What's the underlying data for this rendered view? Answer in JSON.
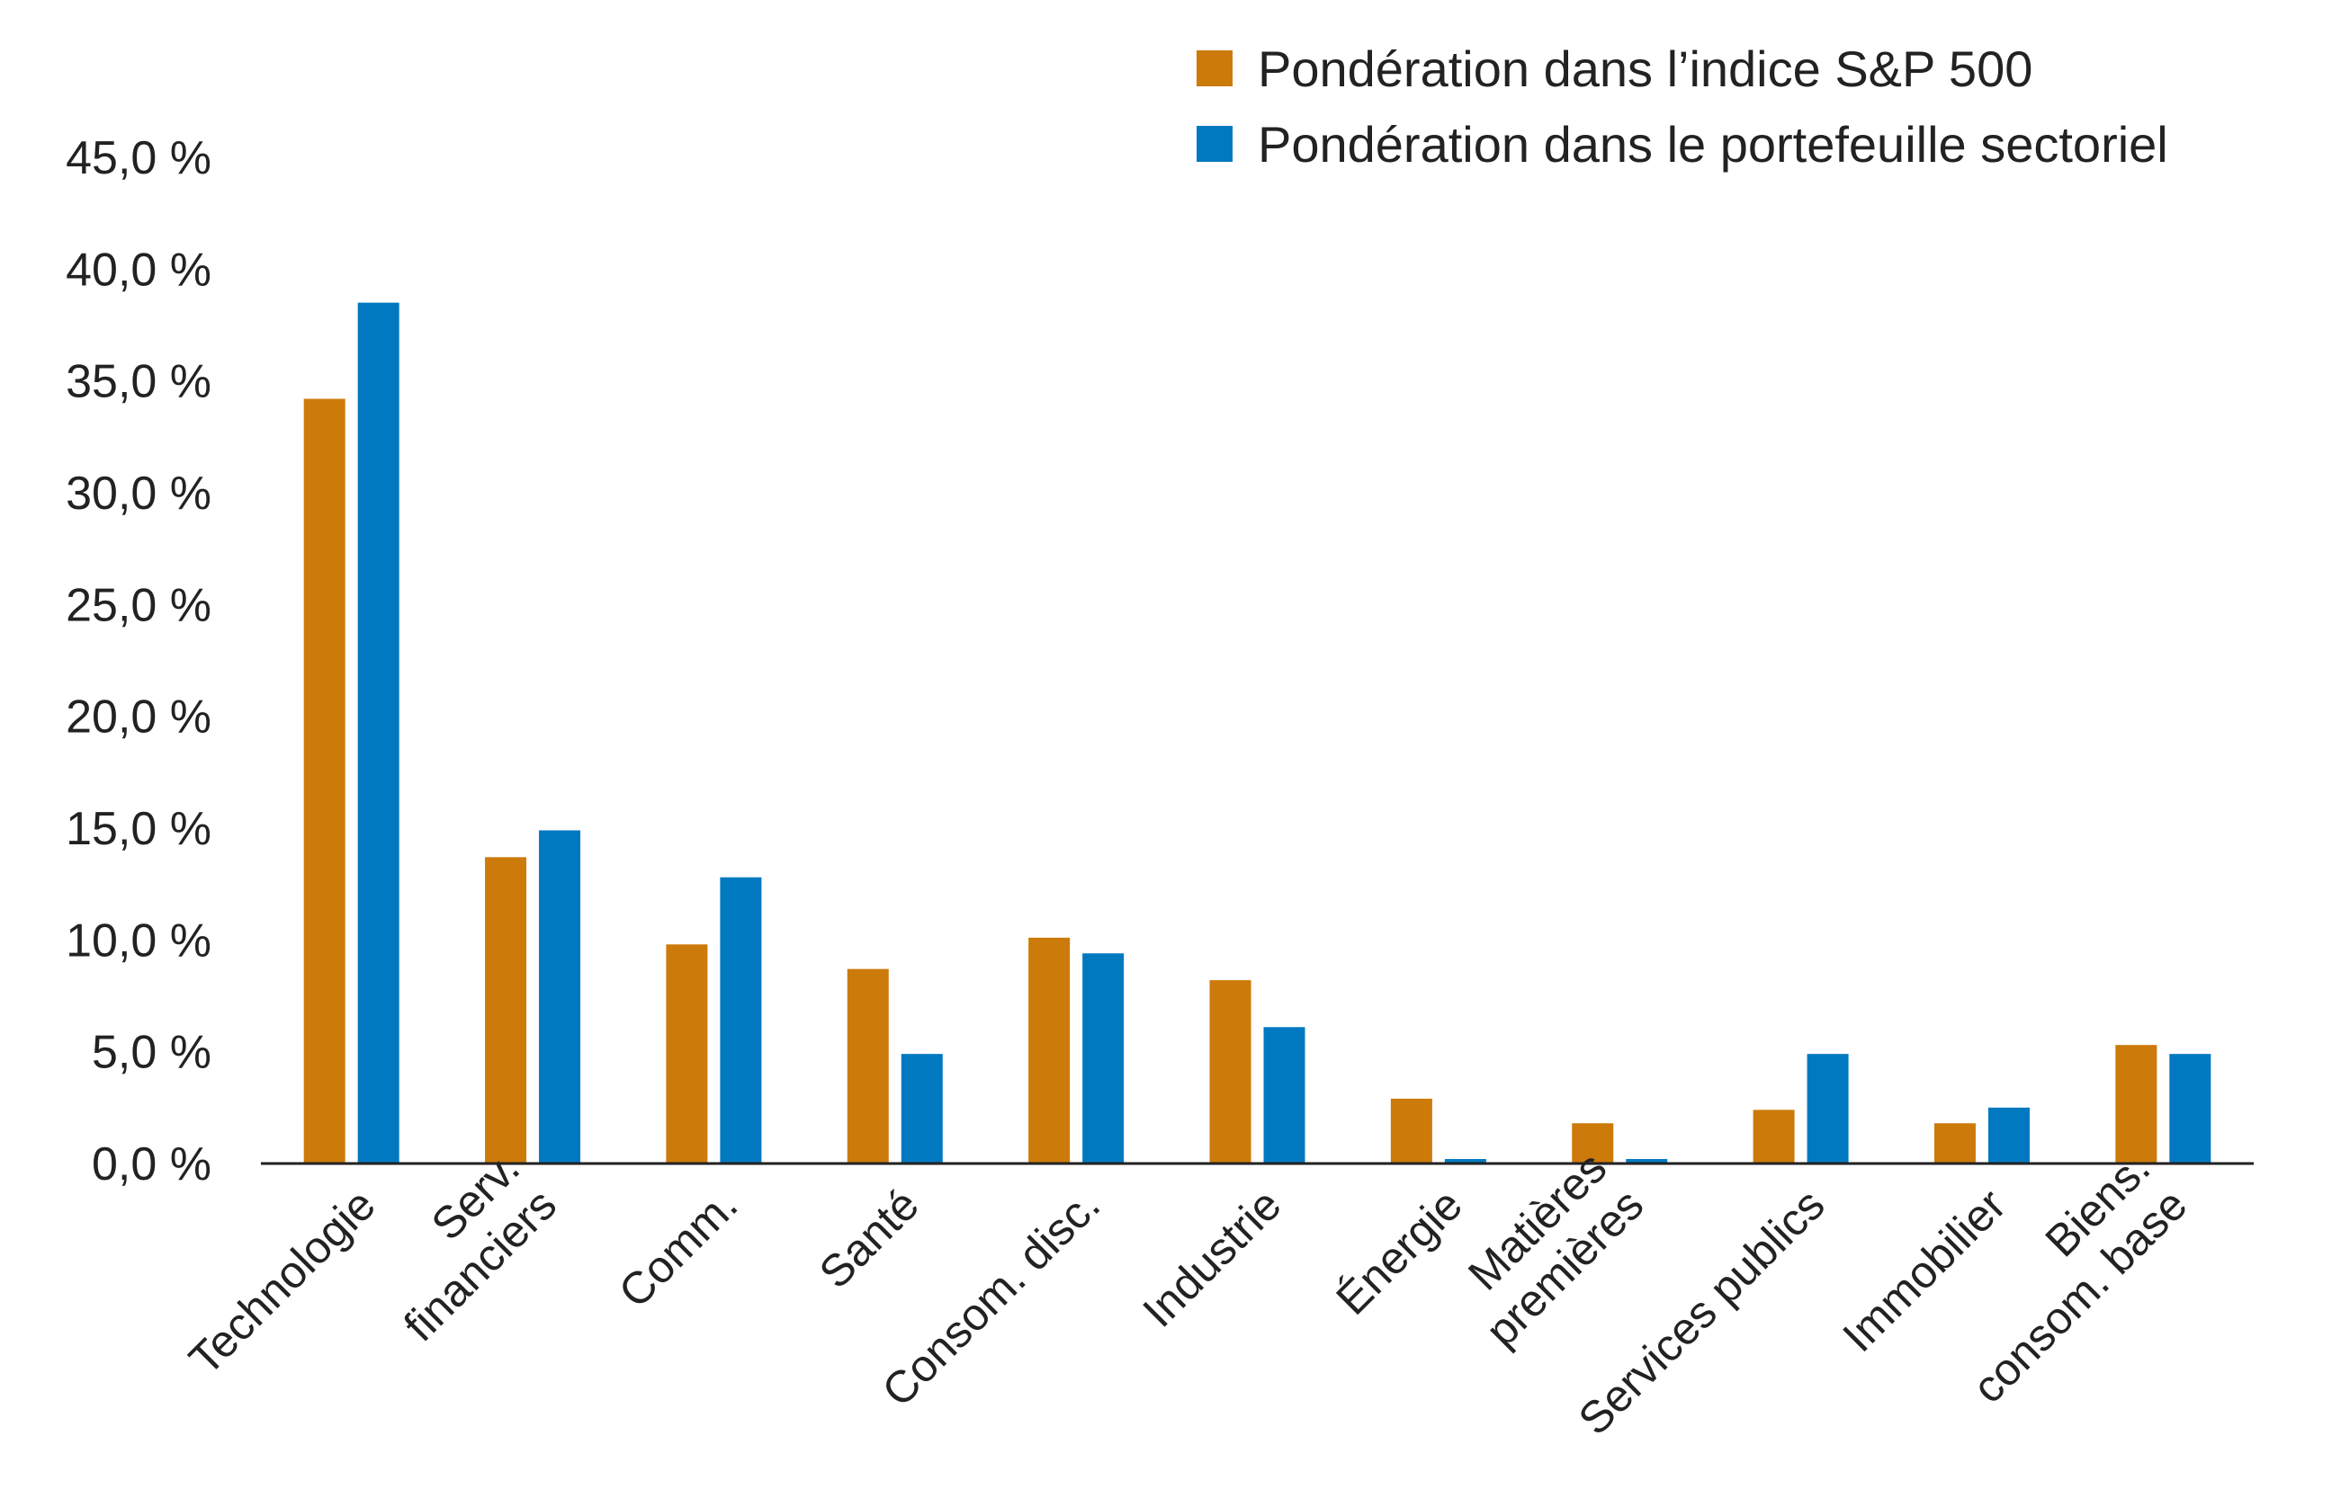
{
  "chart_data": {
    "type": "bar",
    "title": "",
    "xlabel": "",
    "ylabel": "",
    "ylim": [
      0,
      45
    ],
    "yticks": [
      "0,0 %",
      "5,0 %",
      "10,0 %",
      "15,0 %",
      "20,0 %",
      "25,0 %",
      "30,0 %",
      "35,0 %",
      "40,0 %",
      "45,0 %"
    ],
    "categories": [
      [
        "Technologie"
      ],
      [
        "Serv.",
        "financiers"
      ],
      [
        "Comm."
      ],
      [
        "Santé"
      ],
      [
        "Consom. disc."
      ],
      [
        "Industrie"
      ],
      [
        "Énergie"
      ],
      [
        "Matières",
        "premières"
      ],
      [
        "Services publics"
      ],
      [
        "Immobilier"
      ],
      [
        "Biens.",
        "consom. base"
      ]
    ],
    "series": [
      {
        "name": "Pondération dans l’indice S&P 500",
        "color": "#cc7a0a",
        "values": [
          34.2,
          13.7,
          9.8,
          8.7,
          10.1,
          8.2,
          2.9,
          1.8,
          2.4,
          1.8,
          5.3
        ]
      },
      {
        "name": "Pondération dans le portefeuille sectoriel",
        "color": "#0079c1",
        "values": [
          38.5,
          14.9,
          12.8,
          4.9,
          9.4,
          6.1,
          0.2,
          0.2,
          4.9,
          2.5,
          4.9
        ]
      }
    ],
    "grid": false,
    "legend_position": "top-right"
  }
}
